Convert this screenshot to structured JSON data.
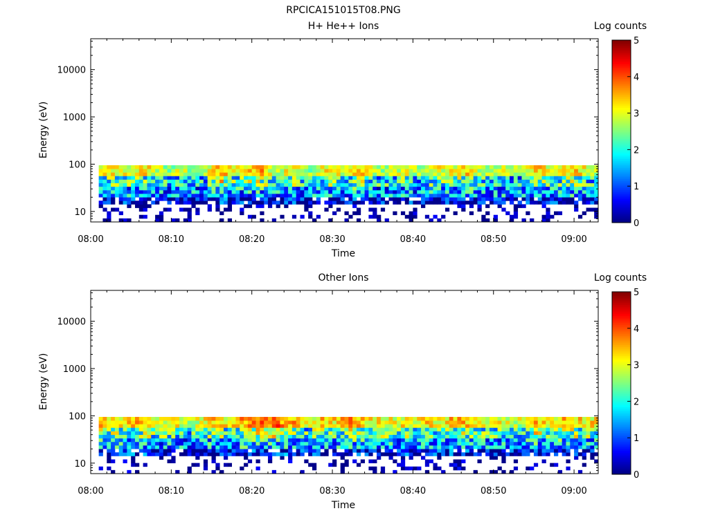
{
  "page": {
    "title": "RPCICA151015T08.PNG"
  },
  "chart_data": [
    {
      "type": "heatmap",
      "title": "H+ He++ Ions",
      "xlabel": "Time",
      "ylabel": "Energy (eV)",
      "yscale": "log",
      "ylim": [
        6,
        45000
      ],
      "xlim": [
        "08:00",
        "09:03"
      ],
      "x_ticks": [
        "08:00",
        "08:10",
        "08:20",
        "08:30",
        "08:40",
        "08:50",
        "09:00"
      ],
      "y_ticks": [
        "10",
        "100",
        "1000",
        "10000"
      ],
      "y_tick_values": [
        10,
        100,
        1000,
        10000
      ],
      "colorbar": {
        "label": "Log counts",
        "range": [
          0,
          5
        ],
        "ticks": [
          "0",
          "1",
          "2",
          "3",
          "4",
          "5"
        ],
        "colormap": "jet"
      },
      "grid": false,
      "data_range": {
        "time_start": "08:01",
        "time_end": "09:03",
        "energy_min_eV": 6,
        "energy_max_eV": 95
      },
      "bands_eV": [
        {
          "range": [
            60,
            95
          ],
          "typical_log_counts": [
            2.4,
            3.4
          ]
        },
        {
          "range": [
            35,
            60
          ],
          "typical_log_counts": [
            2.0,
            3.1
          ]
        },
        {
          "range": [
            20,
            35
          ],
          "typical_log_counts": [
            1.5,
            2.5
          ]
        },
        {
          "range": [
            14,
            20
          ],
          "typical_log_counts": [
            0.5,
            1.5
          ]
        },
        {
          "range": [
            6,
            14
          ],
          "typical_log_counts": [
            0.1,
            0.6
          ],
          "coverage": "sparse"
        }
      ],
      "peaks": [
        {
          "time": "08:16",
          "energy_eV": 90,
          "log_counts": 3.5
        },
        {
          "time": "08:21",
          "energy_eV": 90,
          "log_counts": 3.6
        },
        {
          "time": "08:25",
          "energy_eV": 90,
          "log_counts": 3.5
        },
        {
          "time": "08:39",
          "energy_eV": 90,
          "log_counts": 3.3
        },
        {
          "time": "08:55",
          "energy_eV": 90,
          "log_counts": 3.3
        }
      ]
    },
    {
      "type": "heatmap",
      "title": "Other Ions",
      "xlabel": "Time",
      "ylabel": "Energy (eV)",
      "yscale": "log",
      "ylim": [
        6,
        45000
      ],
      "xlim": [
        "08:00",
        "09:03"
      ],
      "x_ticks": [
        "08:00",
        "08:10",
        "08:20",
        "08:30",
        "08:40",
        "08:50",
        "09:00"
      ],
      "y_ticks": [
        "10",
        "100",
        "1000",
        "10000"
      ],
      "y_tick_values": [
        10,
        100,
        1000,
        10000
      ],
      "colorbar": {
        "label": "Log counts",
        "range": [
          0,
          5
        ],
        "ticks": [
          "0",
          "1",
          "2",
          "3",
          "4",
          "5"
        ],
        "colormap": "jet"
      },
      "grid": false,
      "data_range": {
        "time_start": "08:01",
        "time_end": "09:03",
        "energy_min_eV": 6,
        "energy_max_eV": 95
      },
      "bands_eV": [
        {
          "range": [
            60,
            95
          ],
          "typical_log_counts": [
            2.6,
            3.7
          ]
        },
        {
          "range": [
            35,
            60
          ],
          "typical_log_counts": [
            2.2,
            3.3
          ]
        },
        {
          "range": [
            20,
            35
          ],
          "typical_log_counts": [
            1.6,
            2.6
          ]
        },
        {
          "range": [
            14,
            20
          ],
          "typical_log_counts": [
            0.6,
            1.6
          ]
        },
        {
          "range": [
            6,
            14
          ],
          "typical_log_counts": [
            0.1,
            0.6
          ],
          "coverage": "sparse"
        }
      ],
      "peaks": [
        {
          "time": "08:21",
          "energy_eV": 90,
          "log_counts": 3.8
        },
        {
          "time": "08:23",
          "energy_eV": 90,
          "log_counts": 3.8
        },
        {
          "time": "08:25",
          "energy_eV": 90,
          "log_counts": 3.7
        },
        {
          "time": "08:39",
          "energy_eV": 90,
          "log_counts": 3.4
        },
        {
          "time": "08:55",
          "energy_eV": 90,
          "log_counts": 3.4
        }
      ]
    }
  ]
}
